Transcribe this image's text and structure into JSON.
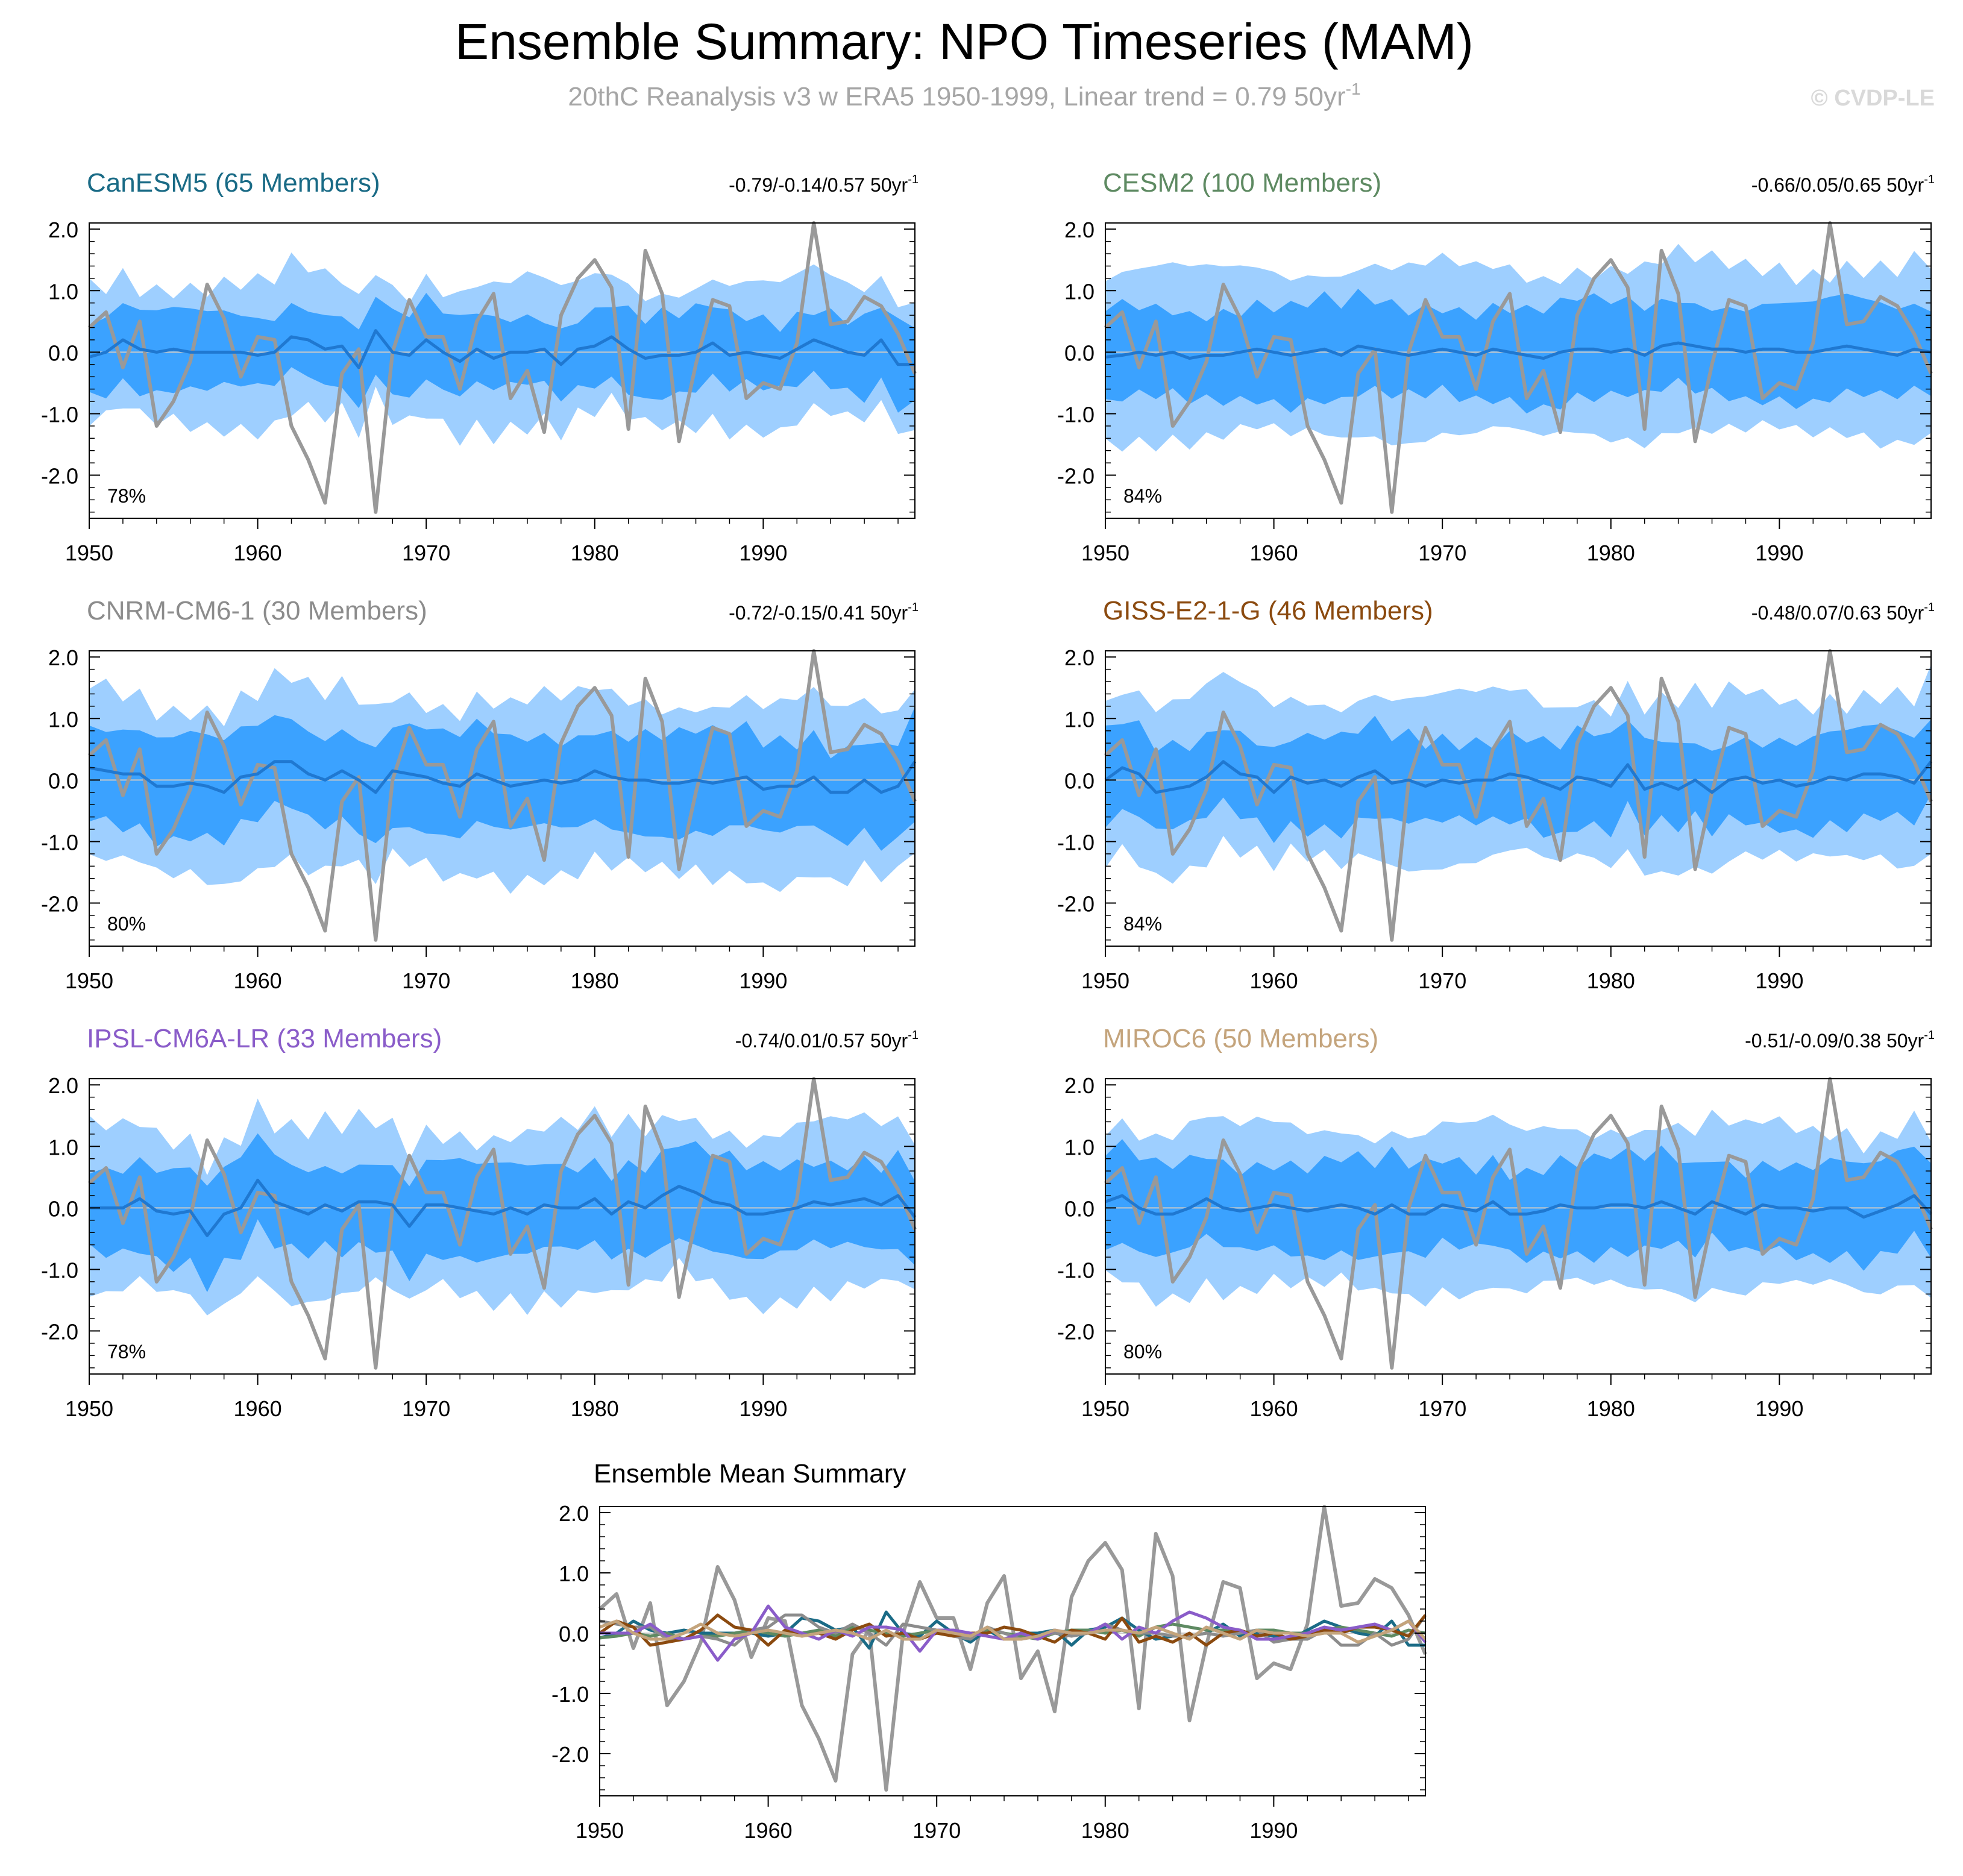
{
  "figure": {
    "title": "Ensemble Summary: NPO Timeseries (MAM)",
    "subtitle": "20thC Reanalysis v3 w ERA5 1950-1999, Linear trend = 0.79 50yr",
    "subtitle_exponent": "-1",
    "credit": "© CVDP-LE"
  },
  "colors": {
    "outer_band": "#9ecfff",
    "inner_band": "#3ba2ff",
    "ensemble_mean": "#1f78d1",
    "observed": "#999999",
    "zero_line": "#c8c8c8"
  },
  "chart_data": [
    {
      "type": "area",
      "title": "CanESM5 (65 Members)",
      "title_color": "#1a6b86",
      "trend_text": "-0.79/-0.14/0.57 50yr",
      "trend_exponent": "-1",
      "pct_label": "78%",
      "xlim": [
        1950,
        1999
      ],
      "ylim": [
        -2.7,
        2.1
      ],
      "x_ticks": [
        "1950",
        "1960",
        "1970",
        "1980",
        "1990"
      ],
      "y_ticks": [
        "2.0",
        "1.0",
        "0.0",
        "-1.0",
        "-2.0"
      ],
      "spread": {
        "outer": [
          1.1,
          -1.15
        ],
        "inner": [
          0.6,
          -0.6
        ]
      },
      "ensemble_mean": [
        -0.08,
        0.0,
        0.2,
        0.05,
        0.0,
        0.05,
        0.0,
        0.0,
        0.0,
        0.0,
        -0.05,
        0.0,
        0.25,
        0.2,
        0.05,
        0.1,
        -0.25,
        0.35,
        0.0,
        -0.05,
        0.2,
        0.0,
        -0.15,
        0.05,
        -0.1,
        0.0,
        0.0,
        0.05,
        -0.2,
        0.05,
        0.1,
        0.25,
        0.05,
        -0.1,
        -0.05,
        -0.05,
        0.0,
        0.15,
        -0.05,
        0.0,
        -0.05,
        -0.1,
        0.05,
        0.2,
        0.1,
        0.0,
        -0.05,
        0.2,
        -0.2,
        -0.2
      ]
    },
    {
      "type": "area",
      "title": "CESM2 (100 Members)",
      "title_color": "#5e8a62",
      "trend_text": "-0.66/0.05/0.65 50yr",
      "trend_exponent": "-1",
      "pct_label": "84%",
      "xlim": [
        1950,
        1999
      ],
      "ylim": [
        -2.7,
        2.1
      ],
      "x_ticks": [
        "1950",
        "1960",
        "1970",
        "1980",
        "1990"
      ],
      "y_ticks": [
        "2.0",
        "1.0",
        "0.0",
        "-1.0",
        "-2.0"
      ],
      "spread": {
        "outer": [
          1.35,
          -1.35
        ],
        "inner": [
          0.75,
          -0.75
        ]
      },
      "ensemble_mean": [
        -0.08,
        -0.05,
        0.0,
        -0.05,
        0.0,
        -0.1,
        -0.05,
        -0.05,
        0.0,
        0.05,
        0.0,
        -0.05,
        0.0,
        0.05,
        -0.05,
        0.1,
        0.05,
        0.0,
        -0.05,
        0.0,
        0.05,
        0.0,
        -0.05,
        0.05,
        0.0,
        -0.05,
        -0.1,
        0.0,
        0.05,
        0.05,
        0.0,
        0.05,
        -0.05,
        0.1,
        0.15,
        0.1,
        0.05,
        0.05,
        0.0,
        0.05,
        0.05,
        0.0,
        0.0,
        0.05,
        0.1,
        0.05,
        0.0,
        -0.05,
        0.05,
        0.0
      ]
    },
    {
      "type": "area",
      "title": "CNRM-CM6-1 (30 Members)",
      "title_color": "#8c8c8c",
      "trend_text": "-0.72/-0.15/0.41 50yr",
      "trend_exponent": "-1",
      "pct_label": "80%",
      "xlim": [
        1950,
        1999
      ],
      "ylim": [
        -2.7,
        2.1
      ],
      "x_ticks": [
        "1950",
        "1960",
        "1970",
        "1980",
        "1990"
      ],
      "y_ticks": [
        "2.0",
        "1.0",
        "0.0",
        "-1.0",
        "-2.0"
      ],
      "spread": {
        "outer": [
          1.3,
          -1.5
        ],
        "inner": [
          0.75,
          -0.8
        ]
      },
      "ensemble_mean": [
        0.2,
        0.15,
        0.1,
        0.1,
        -0.1,
        -0.1,
        -0.05,
        -0.1,
        -0.2,
        0.05,
        0.1,
        0.3,
        0.3,
        0.1,
        0.0,
        0.15,
        0.0,
        -0.2,
        0.15,
        0.1,
        0.05,
        -0.05,
        -0.1,
        0.1,
        0.0,
        -0.1,
        -0.05,
        0.0,
        -0.05,
        0.0,
        0.15,
        0.05,
        0.0,
        0.0,
        -0.05,
        -0.05,
        0.0,
        -0.05,
        0.0,
        0.05,
        -0.15,
        -0.1,
        -0.1,
        0.05,
        -0.2,
        -0.2,
        0.0,
        -0.2,
        -0.1,
        0.3
      ]
    },
    {
      "type": "area",
      "title": "GISS-E2-1-G (46 Members)",
      "title_color": "#8b4a0f",
      "trend_text": "-0.48/0.07/0.63 50yr",
      "trend_exponent": "-1",
      "pct_label": "84%",
      "xlim": [
        1950,
        1999
      ],
      "ylim": [
        -2.7,
        2.1
      ],
      "x_ticks": [
        "1950",
        "1960",
        "1970",
        "1980",
        "1990"
      ],
      "y_ticks": [
        "2.0",
        "1.0",
        "0.0",
        "-1.0",
        "-2.0"
      ],
      "spread": {
        "outer": [
          1.35,
          -1.3
        ],
        "inner": [
          0.7,
          -0.7
        ]
      },
      "ensemble_mean": [
        0.0,
        0.2,
        0.1,
        -0.2,
        -0.15,
        -0.1,
        0.05,
        0.3,
        0.1,
        0.05,
        -0.2,
        0.05,
        -0.05,
        0.0,
        -0.1,
        0.05,
        0.15,
        -0.05,
        0.0,
        -0.1,
        0.0,
        -0.05,
        0.0,
        0.0,
        0.1,
        0.05,
        -0.05,
        -0.15,
        0.05,
        0.0,
        -0.1,
        0.25,
        -0.15,
        -0.05,
        -0.15,
        0.0,
        -0.2,
        0.0,
        0.05,
        -0.05,
        0.0,
        -0.1,
        -0.05,
        0.05,
        0.0,
        0.1,
        0.1,
        0.05,
        -0.05,
        0.3
      ]
    },
    {
      "type": "area",
      "title": "IPSL-CM6A-LR (33 Members)",
      "title_color": "#8a5cc9",
      "trend_text": "-0.74/0.01/0.57 50yr",
      "trend_exponent": "-1",
      "pct_label": "78%",
      "xlim": [
        1950,
        1999
      ],
      "ylim": [
        -2.7,
        2.1
      ],
      "x_ticks": [
        "1950",
        "1960",
        "1970",
        "1980",
        "1990"
      ],
      "y_ticks": [
        "2.0",
        "1.0",
        "0.0",
        "-1.0",
        "-2.0"
      ],
      "spread": {
        "outer": [
          1.25,
          -1.4
        ],
        "inner": [
          0.7,
          -0.75
        ]
      },
      "ensemble_mean": [
        0.0,
        0.0,
        0.0,
        0.15,
        -0.05,
        -0.1,
        -0.05,
        -0.45,
        -0.1,
        0.0,
        0.45,
        0.1,
        0.0,
        -0.1,
        0.05,
        -0.05,
        0.1,
        0.1,
        0.05,
        -0.3,
        0.05,
        0.05,
        0.0,
        -0.05,
        -0.1,
        0.0,
        -0.1,
        0.05,
        0.0,
        0.0,
        0.15,
        -0.1,
        0.1,
        0.0,
        0.2,
        0.35,
        0.25,
        0.1,
        0.05,
        -0.1,
        -0.1,
        -0.05,
        0.0,
        0.1,
        0.05,
        0.1,
        0.15,
        0.05,
        0.2,
        -0.15
      ]
    },
    {
      "type": "area",
      "title": "MIROC6 (50 Members)",
      "title_color": "#c4a47c",
      "trend_text": "-0.51/-0.09/0.38 50yr",
      "trend_exponent": "-1",
      "pct_label": "80%",
      "xlim": [
        1950,
        1999
      ],
      "ylim": [
        -2.7,
        2.1
      ],
      "x_ticks": [
        "1950",
        "1960",
        "1970",
        "1980",
        "1990"
      ],
      "y_ticks": [
        "2.0",
        "1.0",
        "0.0",
        "-1.0",
        "-2.0"
      ],
      "spread": {
        "outer": [
          1.3,
          -1.3
        ],
        "inner": [
          0.75,
          -0.7
        ]
      },
      "ensemble_mean": [
        0.1,
        0.2,
        0.0,
        -0.1,
        -0.1,
        0.0,
        0.15,
        0.0,
        -0.05,
        0.0,
        0.05,
        0.0,
        -0.05,
        0.0,
        0.05,
        0.0,
        -0.1,
        0.05,
        -0.1,
        -0.1,
        0.05,
        0.0,
        -0.05,
        0.1,
        -0.1,
        -0.1,
        -0.05,
        0.05,
        0.0,
        0.0,
        0.05,
        0.05,
        0.0,
        0.1,
        0.0,
        -0.1,
        0.1,
        0.0,
        -0.1,
        0.05,
        0.0,
        0.0,
        -0.05,
        0.0,
        0.0,
        -0.15,
        -0.05,
        0.05,
        0.2,
        -0.1
      ]
    },
    {
      "type": "line",
      "title": "Ensemble Mean Summary",
      "xlim": [
        1950,
        1999
      ],
      "ylim": [
        -2.7,
        2.1
      ],
      "x_ticks": [
        "1950",
        "1960",
        "1970",
        "1980",
        "1990"
      ],
      "y_ticks": [
        "2.0",
        "1.0",
        "0.0",
        "-1.0",
        "-2.0"
      ],
      "observed_index": 0,
      "series": [
        {
          "color": "#999999",
          "values": []
        },
        {
          "color": "#1a6b86",
          "values": "from CanESM5"
        },
        {
          "color": "#5e8a62",
          "values": "from CESM2"
        },
        {
          "color": "#8c8c8c",
          "values": "from CNRM-CM6-1"
        },
        {
          "color": "#8b4a0f",
          "values": "from GISS-E2-1-G"
        },
        {
          "color": "#8a5cc9",
          "values": "from IPSL-CM6A-LR"
        },
        {
          "color": "#c4a47c",
          "values": "from MIROC6"
        }
      ]
    }
  ],
  "observed": {
    "years": [
      1950,
      1999
    ],
    "values": [
      0.4,
      0.65,
      -0.25,
      0.5,
      -1.2,
      -0.8,
      -0.15,
      1.1,
      0.55,
      -0.4,
      0.25,
      0.2,
      -1.2,
      -1.75,
      -2.45,
      -0.35,
      0.05,
      -2.6,
      0.0,
      0.85,
      0.25,
      0.25,
      -0.6,
      0.5,
      0.95,
      -0.75,
      -0.3,
      -1.3,
      0.6,
      1.2,
      1.5,
      1.05,
      -1.25,
      1.65,
      0.95,
      -1.45,
      -0.2,
      0.85,
      0.75,
      -0.75,
      -0.5,
      -0.6,
      0.15,
      2.1,
      0.45,
      0.5,
      0.9,
      0.75,
      0.3,
      -0.35
    ]
  }
}
